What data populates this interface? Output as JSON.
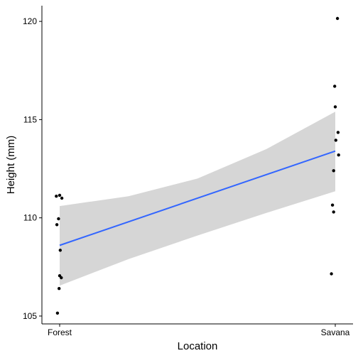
{
  "chart_data": {
    "type": "scatter",
    "title": "",
    "xlabel": "Location",
    "ylabel": "Height (mm)",
    "categories": [
      "Forest",
      "Savana"
    ],
    "ylim": [
      104.6,
      120.8
    ],
    "yticks": [
      105,
      110,
      115,
      120
    ],
    "grid": false,
    "points": [
      {
        "group": "Forest",
        "jitter": -0.012,
        "y": 111.1
      },
      {
        "group": "Forest",
        "jitter": 0.0,
        "y": 111.15
      },
      {
        "group": "Forest",
        "jitter": 0.008,
        "y": 111.0
      },
      {
        "group": "Forest",
        "jitter": -0.004,
        "y": 109.95
      },
      {
        "group": "Forest",
        "jitter": -0.01,
        "y": 109.65
      },
      {
        "group": "Forest",
        "jitter": 0.002,
        "y": 108.35
      },
      {
        "group": "Forest",
        "jitter": 0.0,
        "y": 107.05
      },
      {
        "group": "Forest",
        "jitter": 0.006,
        "y": 106.95
      },
      {
        "group": "Forest",
        "jitter": -0.002,
        "y": 106.4
      },
      {
        "group": "Forest",
        "jitter": -0.008,
        "y": 105.15
      },
      {
        "group": "Savana",
        "jitter": 0.008,
        "y": 120.15
      },
      {
        "group": "Savana",
        "jitter": -0.002,
        "y": 116.7
      },
      {
        "group": "Savana",
        "jitter": 0.0,
        "y": 115.65
      },
      {
        "group": "Savana",
        "jitter": 0.01,
        "y": 114.35
      },
      {
        "group": "Savana",
        "jitter": 0.002,
        "y": 113.95
      },
      {
        "group": "Savana",
        "jitter": 0.012,
        "y": 113.2
      },
      {
        "group": "Savana",
        "jitter": -0.006,
        "y": 112.4
      },
      {
        "group": "Savana",
        "jitter": -0.01,
        "y": 110.65
      },
      {
        "group": "Savana",
        "jitter": -0.006,
        "y": 110.3
      },
      {
        "group": "Savana",
        "jitter": -0.014,
        "y": 107.15
      }
    ],
    "fit_line": {
      "method": "linear",
      "color": "#3366ff",
      "start": {
        "x": "Forest",
        "y": 108.6
      },
      "end": {
        "x": "Savana",
        "y": 113.4
      }
    },
    "confidence_band": {
      "color": "#d6d6d6",
      "lower": [
        {
          "x": 0.0,
          "y": 106.55
        },
        {
          "x": 0.25,
          "y": 107.9
        },
        {
          "x": 0.5,
          "y": 109.1
        },
        {
          "x": 0.75,
          "y": 110.25
        },
        {
          "x": 1.0,
          "y": 111.35
        }
      ],
      "upper": [
        {
          "x": 0.0,
          "y": 110.6
        },
        {
          "x": 0.25,
          "y": 111.1
        },
        {
          "x": 0.5,
          "y": 112.0
        },
        {
          "x": 0.75,
          "y": 113.5
        },
        {
          "x": 1.0,
          "y": 115.4
        }
      ]
    },
    "point_color": "#000000"
  }
}
